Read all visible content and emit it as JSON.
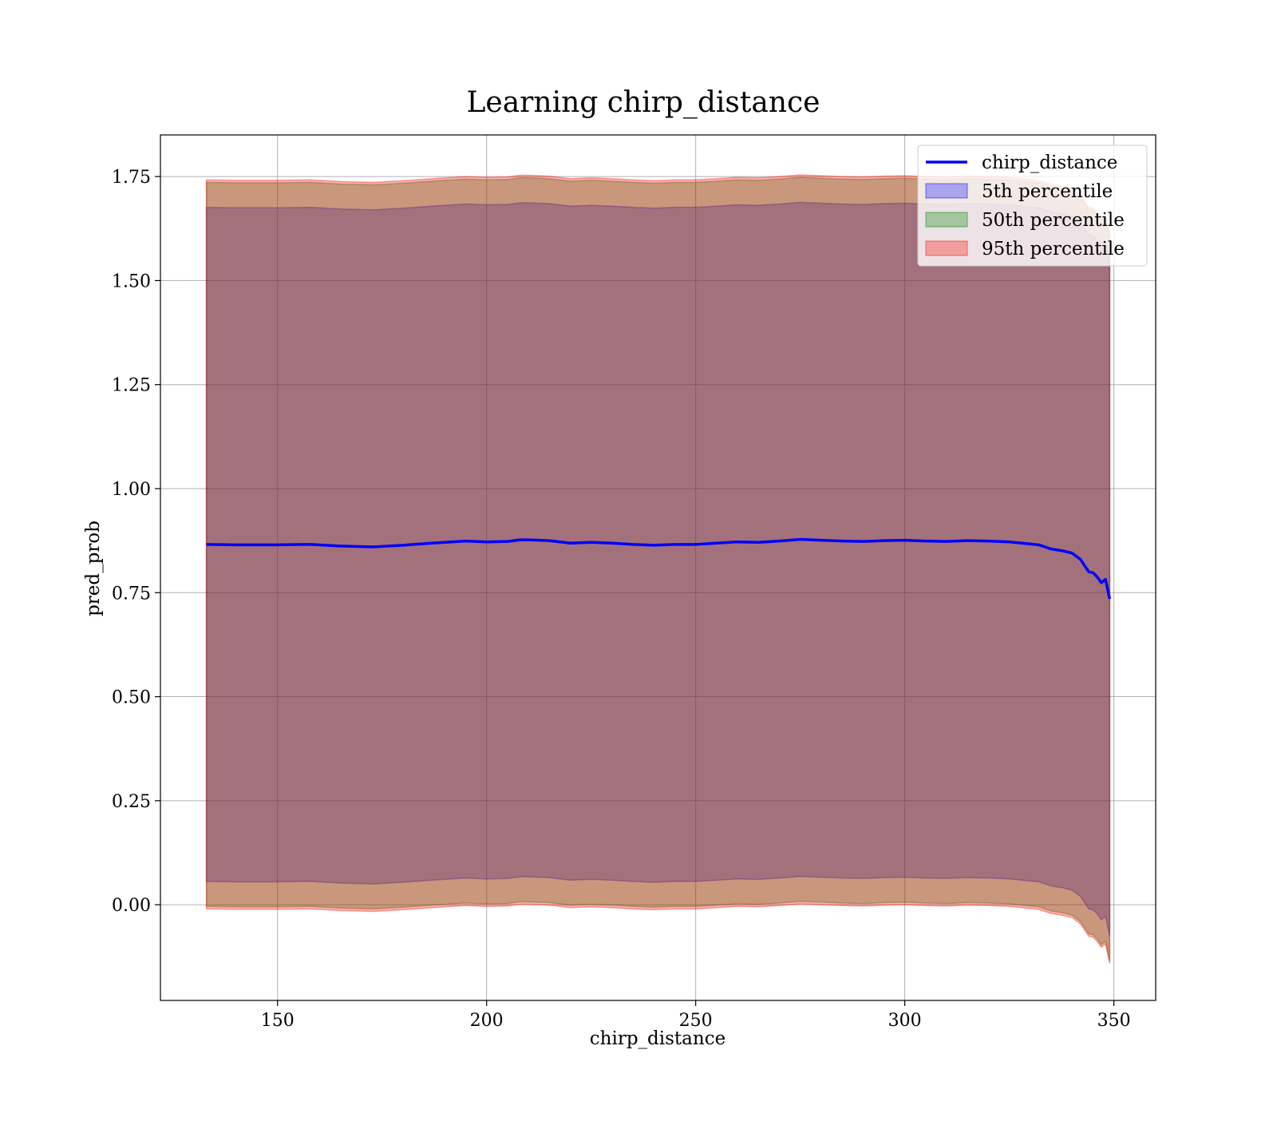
{
  "chart_data": {
    "type": "area",
    "title": "Learning chirp_distance",
    "xlabel": "chirp_distance",
    "ylabel": "pred_prob",
    "xlim": [
      122,
      360
    ],
    "ylim": [
      -0.23,
      1.85
    ],
    "x_ticks": [
      150,
      200,
      250,
      300,
      350
    ],
    "x_tick_labels": [
      "150",
      "200",
      "250",
      "300",
      "350"
    ],
    "y_ticks": [
      0.0,
      0.25,
      0.5,
      0.75,
      1.0,
      1.25,
      1.5,
      1.75
    ],
    "y_tick_labels": [
      "0.00",
      "0.25",
      "0.50",
      "0.75",
      "1.00",
      "1.25",
      "1.50",
      "1.75"
    ],
    "grid": true,
    "legend_position": "top-right",
    "x": [
      133,
      140,
      150,
      158,
      165,
      173,
      180,
      187,
      195,
      200,
      205,
      208,
      210,
      215,
      220,
      225,
      230,
      235,
      240,
      245,
      250,
      255,
      260,
      265,
      270,
      275,
      280,
      285,
      290,
      295,
      300,
      305,
      310,
      315,
      320,
      325,
      328,
      332,
      335,
      338,
      340,
      342,
      344,
      345,
      346,
      347,
      348,
      349
    ],
    "series": [
      {
        "name": "chirp_distance",
        "kind": "line",
        "color": "#0000ff",
        "values": [
          0.866,
          0.865,
          0.865,
          0.866,
          0.862,
          0.86,
          0.864,
          0.869,
          0.874,
          0.872,
          0.873,
          0.877,
          0.877,
          0.875,
          0.869,
          0.871,
          0.869,
          0.866,
          0.864,
          0.866,
          0.866,
          0.869,
          0.872,
          0.871,
          0.874,
          0.878,
          0.876,
          0.874,
          0.873,
          0.875,
          0.876,
          0.874,
          0.873,
          0.875,
          0.874,
          0.872,
          0.869,
          0.865,
          0.855,
          0.85,
          0.845,
          0.83,
          0.8,
          0.798,
          0.788,
          0.774,
          0.782,
          0.735
        ]
      },
      {
        "name": "5th percentile",
        "kind": "band",
        "color": "#0000ff",
        "lower": [
          0.056,
          0.055,
          0.055,
          0.056,
          0.052,
          0.05,
          0.054,
          0.059,
          0.064,
          0.062,
          0.063,
          0.067,
          0.067,
          0.065,
          0.059,
          0.061,
          0.059,
          0.056,
          0.054,
          0.056,
          0.056,
          0.059,
          0.062,
          0.061,
          0.064,
          0.068,
          0.066,
          0.064,
          0.063,
          0.065,
          0.066,
          0.064,
          0.063,
          0.065,
          0.064,
          0.062,
          0.059,
          0.055,
          0.045,
          0.04,
          0.035,
          0.02,
          -0.01,
          -0.012,
          -0.022,
          -0.036,
          -0.028,
          -0.075
        ],
        "upper": [
          1.676,
          1.675,
          1.675,
          1.676,
          1.672,
          1.67,
          1.674,
          1.679,
          1.684,
          1.682,
          1.683,
          1.687,
          1.687,
          1.685,
          1.679,
          1.681,
          1.679,
          1.676,
          1.674,
          1.676,
          1.676,
          1.679,
          1.682,
          1.681,
          1.684,
          1.688,
          1.686,
          1.684,
          1.683,
          1.685,
          1.686,
          1.684,
          1.683,
          1.685,
          1.684,
          1.682,
          1.679,
          1.675,
          1.665,
          1.66,
          1.655,
          1.64,
          1.61,
          1.608,
          1.598,
          1.584,
          1.592,
          1.545
        ]
      },
      {
        "name": "50th percentile",
        "kind": "band",
        "color": "#008000",
        "lower": [
          -0.004,
          -0.005,
          -0.005,
          -0.004,
          -0.008,
          -0.01,
          -0.006,
          -0.001,
          0.004,
          0.002,
          0.003,
          0.007,
          0.007,
          0.005,
          -0.001,
          0.001,
          -0.001,
          -0.004,
          -0.006,
          -0.004,
          -0.004,
          -0.001,
          0.002,
          0.001,
          0.004,
          0.008,
          0.006,
          0.004,
          0.003,
          0.005,
          0.006,
          0.004,
          0.003,
          0.005,
          0.004,
          0.002,
          -0.001,
          -0.005,
          -0.015,
          -0.02,
          -0.025,
          -0.04,
          -0.07,
          -0.072,
          -0.082,
          -0.096,
          -0.088,
          -0.135
        ],
        "upper": [
          1.736,
          1.735,
          1.735,
          1.736,
          1.732,
          1.73,
          1.734,
          1.739,
          1.744,
          1.742,
          1.743,
          1.747,
          1.747,
          1.745,
          1.739,
          1.741,
          1.739,
          1.736,
          1.734,
          1.736,
          1.736,
          1.739,
          1.742,
          1.741,
          1.744,
          1.748,
          1.746,
          1.744,
          1.743,
          1.745,
          1.746,
          1.744,
          1.743,
          1.745,
          1.744,
          1.742,
          1.739,
          1.735,
          1.725,
          1.72,
          1.715,
          1.7,
          1.67,
          1.668,
          1.658,
          1.644,
          1.652,
          1.605
        ]
      },
      {
        "name": "95th percentile",
        "kind": "band",
        "color": "#ff0000",
        "lower": [
          -0.01,
          -0.011,
          -0.011,
          -0.01,
          -0.014,
          -0.016,
          -0.012,
          -0.007,
          -0.002,
          -0.004,
          -0.003,
          0.001,
          0.001,
          -0.001,
          -0.007,
          -0.005,
          -0.007,
          -0.01,
          -0.012,
          -0.01,
          -0.01,
          -0.007,
          -0.004,
          -0.005,
          -0.002,
          0.002,
          0.0,
          -0.002,
          -0.003,
          -0.001,
          0.0,
          -0.002,
          -0.003,
          -0.001,
          -0.002,
          -0.004,
          -0.007,
          -0.011,
          -0.021,
          -0.026,
          -0.031,
          -0.046,
          -0.076,
          -0.078,
          -0.088,
          -0.102,
          -0.094,
          -0.141
        ],
        "upper": [
          1.742,
          1.741,
          1.741,
          1.742,
          1.738,
          1.736,
          1.74,
          1.745,
          1.75,
          1.748,
          1.749,
          1.753,
          1.753,
          1.751,
          1.745,
          1.747,
          1.745,
          1.742,
          1.74,
          1.742,
          1.742,
          1.745,
          1.748,
          1.747,
          1.75,
          1.754,
          1.752,
          1.75,
          1.749,
          1.751,
          1.752,
          1.75,
          1.749,
          1.751,
          1.75,
          1.748,
          1.745,
          1.741,
          1.731,
          1.726,
          1.721,
          1.706,
          1.676,
          1.674,
          1.664,
          1.65,
          1.658,
          1.611
        ]
      }
    ]
  }
}
